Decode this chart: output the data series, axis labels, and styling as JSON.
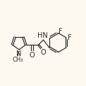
{
  "background_color": "#fdf8f0",
  "line_color": "#282828",
  "line_width": 0.85,
  "font_size": 6.5,
  "figsize": [
    1.22,
    1.23
  ],
  "dpi": 100,
  "xlim": [
    0,
    122
  ],
  "ylim": [
    0,
    123
  ]
}
